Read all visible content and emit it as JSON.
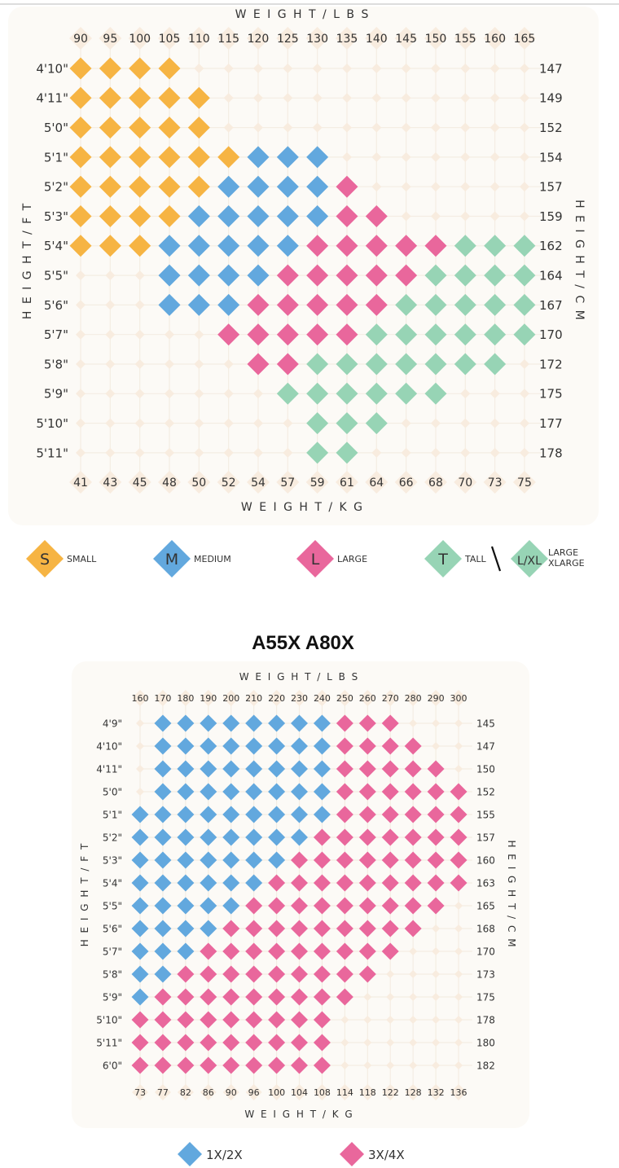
{
  "colors": {
    "S": "#f6b443",
    "M": "#62a8de",
    "L": "#e9679c",
    "T": "#97d4b5",
    "B": "#62a8de",
    "P": "#e9679c",
    "empty": "#f8ecdf",
    "panel": "#fcfaf6",
    "grid": "#f4ede3"
  },
  "chart_data": [
    {
      "type": "table",
      "title": "",
      "top_axis_title": "WEIGHT/LBS",
      "bottom_axis_title": "WEIGHT/KG",
      "left_axis_title": "HEIGHT/FT",
      "right_axis_title": "HEIGHT/CM",
      "weights_lbs": [
        "90",
        "95",
        "100",
        "105",
        "110",
        "115",
        "120",
        "125",
        "130",
        "135",
        "140",
        "145",
        "150",
        "155",
        "160",
        "165"
      ],
      "weights_kg": [
        "41",
        "43",
        "45",
        "48",
        "50",
        "52",
        "54",
        "57",
        "59",
        "61",
        "64",
        "66",
        "68",
        "70",
        "73",
        "75"
      ],
      "heights_ft": [
        "4'10\"",
        "4'11\"",
        "5'0\"",
        "5'1\"",
        "5'2\"",
        "5'3\"",
        "5'4\"",
        "5'5\"",
        "5'6\"",
        "5'7\"",
        "5'8\"",
        "5'9\"",
        "5'10\"",
        "5'11\""
      ],
      "heights_cm": [
        "147",
        "149",
        "152",
        "154",
        "157",
        "159",
        "162",
        "164",
        "167",
        "170",
        "172",
        "175",
        "177",
        "178"
      ],
      "grid": [
        "SSSS............",
        "SSSSS...........",
        "SSSSS...........",
        "SSSSSSMMM.......",
        "SSSSSMMMML......",
        "SSSSMMMMMLL.....",
        "SSSMMMMMLLLLLTTT",
        "...MMMMLLLLLTTTT",
        "...MMMLLLLLTTTTT",
        ".....LLLLLTTTTTT",
        "......LLTTTTTTT.",
        ".......TTTTTT...",
        "........TTT.....",
        "........TT......"
      ],
      "legend": [
        {
          "key": "S",
          "letter": "S",
          "label": "SMALL"
        },
        {
          "key": "M",
          "letter": "M",
          "label": "MEDIUM"
        },
        {
          "key": "L",
          "letter": "L",
          "label": "LARGE"
        },
        {
          "key": "T",
          "letter": "T",
          "label": "TALL"
        },
        {
          "key": "T",
          "letter": "L/XL",
          "label": "LARGE",
          "label2": "XLARGE"
        }
      ]
    },
    {
      "type": "table",
      "title": "A55X A80X",
      "top_axis_title": "WEIGHT/LBS",
      "bottom_axis_title": "WEIGHT/KG",
      "left_axis_title": "HEIGHT/FT",
      "right_axis_title": "HEIGHT/CM",
      "weights_lbs": [
        "160",
        "170",
        "180",
        "190",
        "200",
        "210",
        "220",
        "230",
        "240",
        "250",
        "260",
        "270",
        "280",
        "290",
        "300"
      ],
      "weights_kg": [
        "73",
        "77",
        "82",
        "86",
        "90",
        "96",
        "100",
        "104",
        "108",
        "114",
        "118",
        "122",
        "128",
        "132",
        "136"
      ],
      "heights_ft": [
        "4'9\"",
        "4'10\"",
        "4'11\"",
        "5'0\"",
        "5'1\"",
        "5'2\"",
        "5'3\"",
        "5'4\"",
        "5'5\"",
        "5'6\"",
        "5'7\"",
        "5'8\"",
        "5'9\"",
        "5'10\"",
        "5'11\"",
        "6'0\""
      ],
      "heights_cm": [
        "145",
        "147",
        "150",
        "152",
        "155",
        "157",
        "160",
        "163",
        "165",
        "168",
        "170",
        "173",
        "175",
        "178",
        "180",
        "182"
      ],
      "grid": [
        ".BBBBBBBBPPP...",
        ".BBBBBBBBPPPP..",
        ".BBBBBBBBPPPPP.",
        ".BBBBBBBBPPPPPP",
        "BBBBBBBBBPPPPPP",
        "BBBBBBBBPPPPPPP",
        "BBBBBBBPPPPPPPP",
        "BBBBBBPPPPPPPPP",
        "BBBBBPPPPPPPPP.",
        "BBBBPPPPPPPPP..",
        "BBBPPPPPPPPP...",
        "BBPPPPPPPPP....",
        "BPPPPPPPPP.....",
        "PPPPPPPPP......",
        "PPPPPPPPP......",
        "PPPPPPPPP......"
      ],
      "legend": [
        {
          "key": "B",
          "label": "1X/2X"
        },
        {
          "key": "P",
          "label": "3X/4X"
        }
      ]
    }
  ]
}
